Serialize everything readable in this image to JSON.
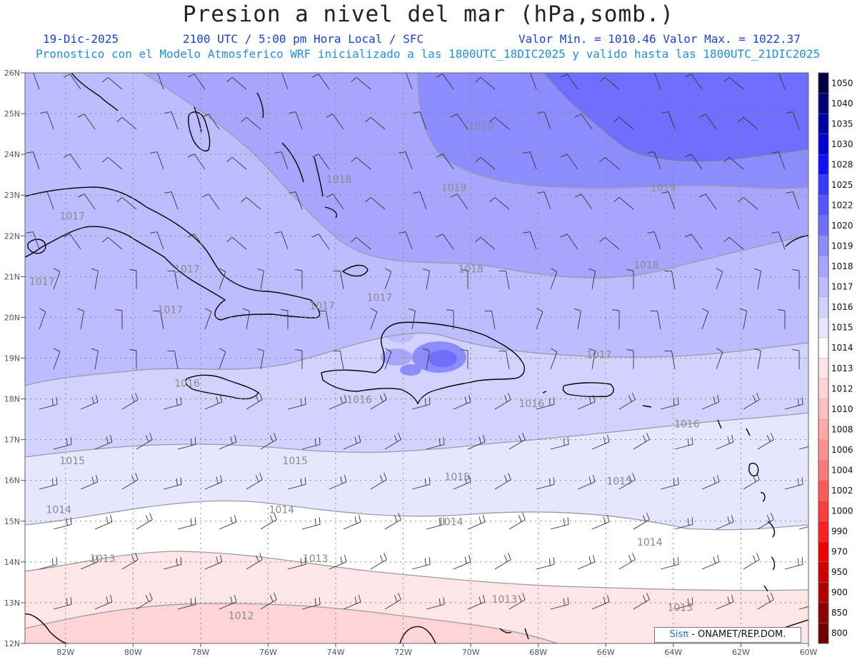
{
  "header": {
    "title": "Presion a nivel del mar (hPa,somb.)",
    "date": "19-Dic-2025",
    "time_info": "2100 UTC / 5:00 pm Hora Local / SFC",
    "min_max": "Valor Min. = 1010.46  Valor Max. = 1022.37",
    "model_info": "Pronostico con el Modelo Atmosferico WRF inicializado a las 1800UTC_18DIC2025 y valido hasta las  1800UTC_21DIC2025"
  },
  "axes": {
    "lat_labels": [
      "26N",
      "25N",
      "24N",
      "23N",
      "22N",
      "21N",
      "20N",
      "19N",
      "18N",
      "17N",
      "16N",
      "15N",
      "14N",
      "13N",
      "12N"
    ],
    "lon_labels": [
      "82W",
      "80W",
      "78W",
      "76W",
      "74W",
      "72W",
      "70W",
      "68W",
      "66W",
      "64W",
      "62W",
      "60W"
    ],
    "lat_range": [
      12,
      26
    ],
    "lon_range": [
      -83.2,
      -60
    ]
  },
  "colorbar": {
    "levels": [
      "1050",
      "1040",
      "1035",
      "1030",
      "1028",
      "1025",
      "1022",
      "1020",
      "1019",
      "1018",
      "1017",
      "1016",
      "1015",
      "1014",
      "1013",
      "1012",
      "1010",
      "1008",
      "1006",
      "1004",
      "1002",
      "1000",
      "990",
      "970",
      "950",
      "900",
      "850",
      "800"
    ],
    "colors": [
      "#000040",
      "#00007a",
      "#0000a8",
      "#0000d4",
      "#1010ff",
      "#3a3aff",
      "#5555ff",
      "#6f6fff",
      "#8c8cff",
      "#a6a6ff",
      "#bcbcff",
      "#d2d2ff",
      "#e6e6ff",
      "#ffffff",
      "#ffe6e6",
      "#ffd4d4",
      "#ffc0c0",
      "#ffa8a8",
      "#ff9090",
      "#ff7878",
      "#ff5a5a",
      "#ff3c3c",
      "#ff1e1e",
      "#f00000",
      "#d00000",
      "#b00000",
      "#900000",
      "#700000"
    ]
  },
  "contour_labels": [
    {
      "text": "1020",
      "lon": -69.7,
      "lat": 24.6
    },
    {
      "text": "1019",
      "lon": -70.5,
      "lat": 23.1
    },
    {
      "text": "1019",
      "lon": -64.3,
      "lat": 23.1
    },
    {
      "text": "1018",
      "lon": -73.9,
      "lat": 23.3
    },
    {
      "text": "1018",
      "lon": -70.0,
      "lat": 21.1
    },
    {
      "text": "1018",
      "lon": -64.8,
      "lat": 21.2
    },
    {
      "text": "1017",
      "lon": -81.8,
      "lat": 22.4
    },
    {
      "text": "1017",
      "lon": -82.7,
      "lat": 20.8
    },
    {
      "text": "1017",
      "lon": -78.4,
      "lat": 21.1
    },
    {
      "text": "1017",
      "lon": -78.9,
      "lat": 20.1
    },
    {
      "text": "1017",
      "lon": -74.4,
      "lat": 20.2
    },
    {
      "text": "1017",
      "lon": -72.7,
      "lat": 20.4
    },
    {
      "text": "1017",
      "lon": -66.2,
      "lat": 19.0
    },
    {
      "text": "1016",
      "lon": -78.4,
      "lat": 18.3
    },
    {
      "text": "1016",
      "lon": -73.3,
      "lat": 17.9
    },
    {
      "text": "1016",
      "lon": -68.2,
      "lat": 17.8
    },
    {
      "text": "1016",
      "lon": -63.6,
      "lat": 17.3
    },
    {
      "text": "1015",
      "lon": -81.8,
      "lat": 16.4
    },
    {
      "text": "1015",
      "lon": -75.2,
      "lat": 16.4
    },
    {
      "text": "1015",
      "lon": -70.4,
      "lat": 16.0
    },
    {
      "text": "1015",
      "lon": -65.6,
      "lat": 15.9
    },
    {
      "text": "1014",
      "lon": -82.2,
      "lat": 15.2
    },
    {
      "text": "1014",
      "lon": -75.6,
      "lat": 15.2
    },
    {
      "text": "1014",
      "lon": -70.6,
      "lat": 14.9
    },
    {
      "text": "1014",
      "lon": -64.7,
      "lat": 14.4
    },
    {
      "text": "1013",
      "lon": -80.9,
      "lat": 14.0
    },
    {
      "text": "1013",
      "lon": -74.6,
      "lat": 14.0
    },
    {
      "text": "1013",
      "lon": -69.0,
      "lat": 13.0
    },
    {
      "text": "1013",
      "lon": -63.8,
      "lat": 12.8
    },
    {
      "text": "1012",
      "lon": -76.8,
      "lat": 12.6
    }
  ],
  "credit": {
    "logo": "Sisπ",
    "text": " - ONAMET/REP.DOM."
  }
}
